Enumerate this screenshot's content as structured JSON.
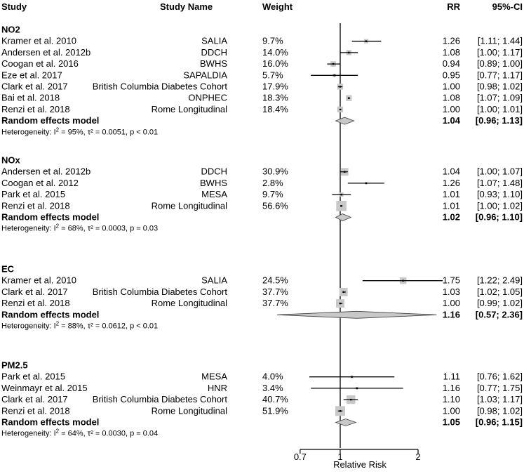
{
  "chart_data": {
    "type": "forest",
    "headers": {
      "study": "Study",
      "study_name": "Study Name",
      "weight": "Weight",
      "rr": "RR",
      "ci": "95%-CI"
    },
    "xlabel": "Relative Risk",
    "x_scale": "log",
    "xlim": [
      0.62,
      2.3
    ],
    "ticks": [
      {
        "value": 0.7,
        "label": "0.7"
      },
      {
        "value": 1,
        "label": "1"
      },
      {
        "value": 2,
        "label": "2"
      }
    ],
    "groups": [
      {
        "name": "NO2",
        "studies": [
          {
            "study": "Kramer et al. 2010",
            "name": "SALIA",
            "weight": "9.7%",
            "rr": 1.26,
            "lo": 1.11,
            "hi": 1.44,
            "rr_text": "1.26",
            "ci_text": "[1.11; 1.44]"
          },
          {
            "study": "Andersen et al. 2012b",
            "name": "DDCH",
            "weight": "14.0%",
            "rr": 1.08,
            "lo": 1.0,
            "hi": 1.17,
            "rr_text": "1.08",
            "ci_text": "[1.00; 1.17]"
          },
          {
            "study": "Coogan et al. 2016",
            "name": "BWHS",
            "weight": "16.0%",
            "rr": 0.94,
            "lo": 0.89,
            "hi": 1.0,
            "rr_text": "0.94",
            "ci_text": "[0.89; 1.00]"
          },
          {
            "study": "Eze et al. 2017",
            "name": "SAPALDIA",
            "weight": "5.7%",
            "rr": 0.95,
            "lo": 0.77,
            "hi": 1.17,
            "rr_text": "0.95",
            "ci_text": "[0.77; 1.17]"
          },
          {
            "study": "Clark et al. 2017",
            "name": "British Columbia Diabetes Cohort",
            "weight": "17.9%",
            "rr": 1.0,
            "lo": 0.98,
            "hi": 1.02,
            "rr_text": "1.00",
            "ci_text": "[0.98; 1.02]"
          },
          {
            "study": "Bai et al. 2018",
            "name": "ONPHEC",
            "weight": "18.3%",
            "rr": 1.08,
            "lo": 1.07,
            "hi": 1.09,
            "rr_text": "1.08",
            "ci_text": "[1.07; 1.09]"
          },
          {
            "study": "Renzi et al. 2018",
            "name": "Rome Longitudinal",
            "weight": "18.4%",
            "rr": 1.0,
            "lo": 1.0,
            "hi": 1.01,
            "rr_text": "1.00",
            "ci_text": "[1.00; 1.01]"
          }
        ],
        "summary": {
          "label": "Random effects model",
          "rr": 1.04,
          "lo": 0.96,
          "hi": 1.13,
          "rr_text": "1.04",
          "ci_text": "[0.96; 1.13]"
        },
        "heterogeneity": {
          "prefix": "Heterogeneity: I",
          "sup": "2",
          "rest": " = 95%, τ² = 0.0051, p < 0.01"
        }
      },
      {
        "name": "NOx",
        "studies": [
          {
            "study": "Andersen et al. 2012b",
            "name": "DDCH",
            "weight": "30.9%",
            "rr": 1.04,
            "lo": 1.0,
            "hi": 1.07,
            "rr_text": "1.04",
            "ci_text": "[1.00; 1.07]"
          },
          {
            "study": "Coogan et al. 2012",
            "name": "BWHS",
            "weight": "2.8%",
            "rr": 1.26,
            "lo": 1.07,
            "hi": 1.48,
            "rr_text": "1.26",
            "ci_text": "[1.07; 1.48]"
          },
          {
            "study": "Park et al. 2015",
            "name": "MESA",
            "weight": "9.7%",
            "rr": 1.01,
            "lo": 0.93,
            "hi": 1.1,
            "rr_text": "1.01",
            "ci_text": "[0.93; 1.10]"
          },
          {
            "study": "Renzi et al. 2018",
            "name": "Rome Longitudinal",
            "weight": "56.6%",
            "rr": 1.01,
            "lo": 1.0,
            "hi": 1.02,
            "rr_text": "1.01",
            "ci_text": "[1.00; 1.02]"
          }
        ],
        "summary": {
          "label": "Random effects model",
          "rr": 1.02,
          "lo": 0.96,
          "hi": 1.1,
          "rr_text": "1.02",
          "ci_text": "[0.96; 1.10]"
        },
        "heterogeneity": {
          "prefix": "Heterogeneity: I",
          "sup": "2",
          "rest": " = 68%, τ² = 0.0003, p = 0.03"
        }
      },
      {
        "name": "EC",
        "studies": [
          {
            "study": "Kramer et al. 2010",
            "name": "SALIA",
            "weight": "24.5%",
            "rr": 1.75,
            "lo": 1.22,
            "hi": 2.49,
            "rr_text": "1.75",
            "ci_text": "[1.22; 2.49]"
          },
          {
            "study": "Clark et al. 2017",
            "name": "British Columbia Diabetes Cohort",
            "weight": "37.7%",
            "rr": 1.03,
            "lo": 1.02,
            "hi": 1.05,
            "rr_text": "1.03",
            "ci_text": "[1.02; 1.05]"
          },
          {
            "study": "Renzi et al. 2018",
            "name": "Rome Longitudinal",
            "weight": "37.7%",
            "rr": 1.0,
            "lo": 0.99,
            "hi": 1.02,
            "rr_text": "1.00",
            "ci_text": "[0.99; 1.02]"
          }
        ],
        "summary": {
          "label": "Random effects model",
          "rr": 1.16,
          "lo": 0.57,
          "hi": 2.36,
          "rr_text": "1.16",
          "ci_text": "[0.57; 2.36]"
        },
        "heterogeneity": {
          "prefix": "Heterogeneity: I",
          "sup": "2",
          "rest": " = 88%, τ² = 0.0612, p < 0.01"
        }
      },
      {
        "name": "PM2.5",
        "studies": [
          {
            "study": "Park et al. 2015",
            "name": "MESA",
            "weight": "4.0%",
            "rr": 1.11,
            "lo": 0.76,
            "hi": 1.62,
            "rr_text": "1.11",
            "ci_text": "[0.76; 1.62]"
          },
          {
            "study": "Weinmayr et al. 2015",
            "name": "HNR",
            "weight": "3.4%",
            "rr": 1.16,
            "lo": 0.77,
            "hi": 1.75,
            "rr_text": "1.16",
            "ci_text": "[0.77; 1.75]"
          },
          {
            "study": "Clark et al. 2017",
            "name": "British Columbia Diabetes Cohort",
            "weight": "40.7%",
            "rr": 1.1,
            "lo": 1.03,
            "hi": 1.17,
            "rr_text": "1.10",
            "ci_text": "[1.03; 1.17]"
          },
          {
            "study": "Renzi et al. 2018",
            "name": "Rome Longitudinal",
            "weight": "51.9%",
            "rr": 1.0,
            "lo": 0.98,
            "hi": 1.02,
            "rr_text": "1.00",
            "ci_text": "[0.98; 1.02]"
          }
        ],
        "summary": {
          "label": "Random effects model",
          "rr": 1.05,
          "lo": 0.96,
          "hi": 1.15,
          "rr_text": "1.05",
          "ci_text": "[0.96; 1.15]"
        },
        "heterogeneity": {
          "prefix": "Heterogeneity: I",
          "sup": "2",
          "rest": " = 64%, τ² = 0.0030, p = 0.04"
        }
      }
    ],
    "colors": {
      "box": "#c8c8c8",
      "diamond": "#c8c8c8",
      "line": "#000000"
    }
  }
}
